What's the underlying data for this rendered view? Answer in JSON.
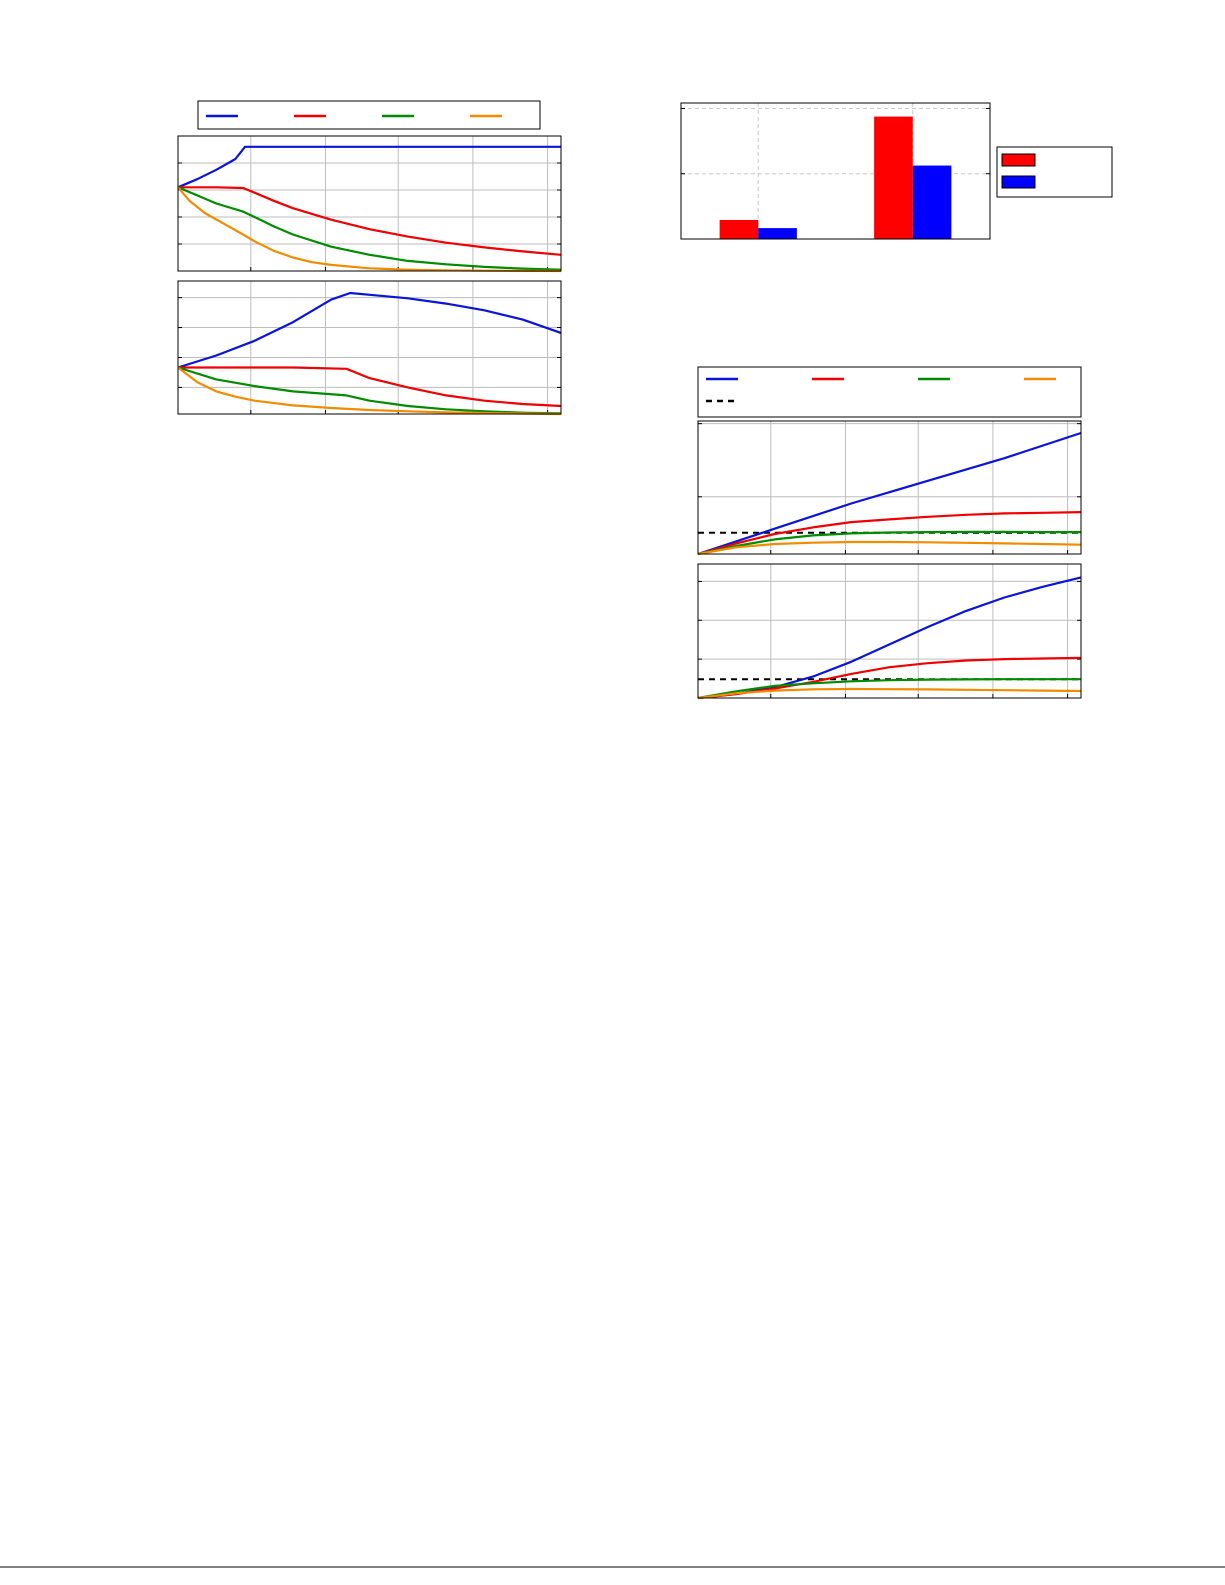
{
  "chart_data": [
    {
      "id": "left-top",
      "type": "line",
      "grid": true,
      "xlim": [
        0,
        1
      ],
      "ylim": [
        0,
        1
      ],
      "x_grid": [
        0.19,
        0.385,
        0.575,
        0.77,
        0.965
      ],
      "y_grid": [
        0.2,
        0.4,
        0.6,
        0.8
      ],
      "legend": {
        "placement": "above",
        "entries": [
          {
            "label": "",
            "color": "#0a14d8",
            "dash": false
          },
          {
            "label": "",
            "color": "#f00000",
            "dash": false
          },
          {
            "label": "",
            "color": "#008c00",
            "dash": false
          },
          {
            "label": "",
            "color": "#f08c00",
            "dash": false
          }
        ]
      },
      "series": [
        {
          "color": "#0a14d8",
          "x": [
            0,
            0.05,
            0.1,
            0.15,
            0.175,
            0.2,
            0.4,
            0.6,
            0.8,
            1.0
          ],
          "y": [
            0.62,
            0.68,
            0.75,
            0.83,
            0.92,
            0.92,
            0.92,
            0.92,
            0.92,
            0.92
          ]
        },
        {
          "color": "#f00000",
          "x": [
            0,
            0.05,
            0.1,
            0.17,
            0.2,
            0.25,
            0.3,
            0.4,
            0.5,
            0.6,
            0.7,
            0.8,
            0.9,
            1.0
          ],
          "y": [
            0.62,
            0.62,
            0.62,
            0.615,
            0.58,
            0.52,
            0.465,
            0.38,
            0.31,
            0.255,
            0.21,
            0.175,
            0.145,
            0.12
          ]
        },
        {
          "color": "#008c00",
          "x": [
            0,
            0.05,
            0.1,
            0.17,
            0.2,
            0.25,
            0.3,
            0.4,
            0.5,
            0.6,
            0.7,
            0.8,
            0.9,
            1.0
          ],
          "y": [
            0.62,
            0.56,
            0.5,
            0.44,
            0.4,
            0.33,
            0.27,
            0.18,
            0.12,
            0.075,
            0.05,
            0.03,
            0.018,
            0.01
          ]
        },
        {
          "color": "#f08c00",
          "x": [
            0,
            0.03,
            0.07,
            0.12,
            0.17,
            0.2,
            0.25,
            0.3,
            0.35,
            0.4,
            0.5,
            0.6,
            0.7,
            0.8,
            1.0
          ],
          "y": [
            0.62,
            0.52,
            0.43,
            0.35,
            0.27,
            0.22,
            0.15,
            0.1,
            0.065,
            0.045,
            0.02,
            0.01,
            0.005,
            0.002,
            0.0
          ]
        }
      ]
    },
    {
      "id": "left-bottom",
      "type": "line",
      "grid": true,
      "xlim": [
        0,
        1
      ],
      "ylim": [
        0,
        1
      ],
      "x_grid": [
        0.19,
        0.385,
        0.575,
        0.77,
        0.965
      ],
      "y_grid": [
        0.2,
        0.425,
        0.65,
        0.875
      ],
      "series": [
        {
          "color": "#0a14d8",
          "x": [
            0,
            0.1,
            0.2,
            0.3,
            0.4,
            0.45,
            0.6,
            0.7,
            0.8,
            0.9,
            1.0
          ],
          "y": [
            0.35,
            0.44,
            0.55,
            0.69,
            0.86,
            0.91,
            0.87,
            0.83,
            0.78,
            0.71,
            0.61
          ]
        },
        {
          "color": "#f00000",
          "x": [
            0,
            0.1,
            0.2,
            0.3,
            0.44,
            0.5,
            0.6,
            0.7,
            0.8,
            0.9,
            1.0
          ],
          "y": [
            0.35,
            0.35,
            0.35,
            0.35,
            0.34,
            0.27,
            0.2,
            0.14,
            0.1,
            0.075,
            0.06
          ]
        },
        {
          "color": "#008c00",
          "x": [
            0,
            0.1,
            0.2,
            0.3,
            0.44,
            0.5,
            0.6,
            0.7,
            0.8,
            0.9,
            1.0
          ],
          "y": [
            0.35,
            0.26,
            0.21,
            0.17,
            0.14,
            0.1,
            0.06,
            0.035,
            0.02,
            0.01,
            0.005
          ]
        },
        {
          "color": "#f08c00",
          "x": [
            0,
            0.05,
            0.1,
            0.15,
            0.2,
            0.3,
            0.4,
            0.5,
            0.6,
            0.7,
            0.85,
            1.0
          ],
          "y": [
            0.35,
            0.24,
            0.17,
            0.13,
            0.1,
            0.065,
            0.045,
            0.03,
            0.02,
            0.012,
            0.005,
            0.0
          ]
        }
      ]
    },
    {
      "id": "right-bar",
      "type": "bar",
      "grid": true,
      "grid_style": "dashed",
      "ylim": [
        0,
        1
      ],
      "y_grid": [
        0.48,
        0.96
      ],
      "x_grid": [
        0.25,
        0.75,
        1.0
      ],
      "categories": [
        "",
        ""
      ],
      "legend": {
        "placement": "right",
        "entries": [
          {
            "label": "",
            "color": "#ff0000"
          },
          {
            "label": "",
            "color": "#0000ff"
          }
        ]
      },
      "series": [
        {
          "color": "#ff0000",
          "values": [
            0.14,
            0.9
          ]
        },
        {
          "color": "#0000ff",
          "values": [
            0.08,
            0.54
          ]
        }
      ]
    },
    {
      "id": "right-top",
      "type": "line",
      "grid": true,
      "xlim": [
        0,
        1
      ],
      "ylim": [
        0,
        1
      ],
      "x_grid": [
        0.19,
        0.385,
        0.575,
        0.77,
        0.965
      ],
      "y_grid": [
        0.43,
        0.98
      ],
      "legend": {
        "placement": "above",
        "entries": [
          {
            "label": "",
            "color": "#0a14d8",
            "dash": false
          },
          {
            "label": "",
            "color": "#f00000",
            "dash": false
          },
          {
            "label": "",
            "color": "#008c00",
            "dash": false
          },
          {
            "label": "",
            "color": "#f08c00",
            "dash": false
          },
          {
            "label": "",
            "color": "#000000",
            "dash": true
          }
        ]
      },
      "reference": {
        "y": 0.16,
        "color": "#000000"
      },
      "series": [
        {
          "color": "#0a14d8",
          "x": [
            0,
            0.2,
            0.4,
            0.6,
            0.8,
            1.0
          ],
          "y": [
            0.0,
            0.19,
            0.38,
            0.55,
            0.72,
            0.91
          ]
        },
        {
          "color": "#f00000",
          "x": [
            0,
            0.1,
            0.2,
            0.3,
            0.4,
            0.5,
            0.6,
            0.7,
            0.8,
            0.9,
            1.0
          ],
          "y": [
            0.0,
            0.08,
            0.15,
            0.2,
            0.24,
            0.26,
            0.28,
            0.295,
            0.305,
            0.31,
            0.315
          ]
        },
        {
          "color": "#008c00",
          "x": [
            0,
            0.1,
            0.2,
            0.3,
            0.4,
            0.5,
            0.6,
            0.7,
            0.8,
            0.9,
            1.0
          ],
          "y": [
            0.0,
            0.06,
            0.11,
            0.14,
            0.155,
            0.162,
            0.165,
            0.166,
            0.166,
            0.165,
            0.165
          ]
        },
        {
          "color": "#f08c00",
          "x": [
            0,
            0.1,
            0.2,
            0.3,
            0.4,
            0.5,
            0.6,
            0.7,
            0.8,
            0.9,
            1.0
          ],
          "y": [
            0.0,
            0.05,
            0.075,
            0.085,
            0.09,
            0.09,
            0.088,
            0.084,
            0.08,
            0.075,
            0.07
          ]
        }
      ]
    },
    {
      "id": "right-bottom",
      "type": "line",
      "grid": true,
      "xlim": [
        0,
        1
      ],
      "ylim": [
        0,
        1
      ],
      "x_grid": [
        0.19,
        0.385,
        0.575,
        0.77,
        0.965
      ],
      "y_grid": [
        0.29,
        0.58,
        0.87
      ],
      "reference": {
        "y": 0.14,
        "color": "#000000"
      },
      "series": [
        {
          "color": "#0a14d8",
          "x": [
            0,
            0.1,
            0.2,
            0.3,
            0.4,
            0.5,
            0.6,
            0.7,
            0.8,
            0.9,
            1.0
          ],
          "y": [
            0.0,
            0.03,
            0.08,
            0.16,
            0.27,
            0.4,
            0.53,
            0.65,
            0.75,
            0.83,
            0.9
          ]
        },
        {
          "color": "#f00000",
          "x": [
            0,
            0.1,
            0.2,
            0.3,
            0.4,
            0.5,
            0.6,
            0.7,
            0.8,
            0.9,
            1.0
          ],
          "y": [
            0.0,
            0.03,
            0.07,
            0.12,
            0.18,
            0.23,
            0.26,
            0.28,
            0.29,
            0.295,
            0.3
          ]
        },
        {
          "color": "#008c00",
          "x": [
            0,
            0.1,
            0.2,
            0.3,
            0.4,
            0.5,
            0.6,
            0.7,
            0.8,
            0.9,
            1.0
          ],
          "y": [
            0.0,
            0.05,
            0.09,
            0.11,
            0.125,
            0.133,
            0.137,
            0.139,
            0.14,
            0.14,
            0.14
          ]
        },
        {
          "color": "#f08c00",
          "x": [
            0,
            0.1,
            0.2,
            0.3,
            0.4,
            0.5,
            0.6,
            0.7,
            0.8,
            0.9,
            1.0
          ],
          "y": [
            0.0,
            0.035,
            0.055,
            0.065,
            0.067,
            0.066,
            0.064,
            0.061,
            0.058,
            0.055,
            0.052
          ]
        }
      ]
    }
  ]
}
